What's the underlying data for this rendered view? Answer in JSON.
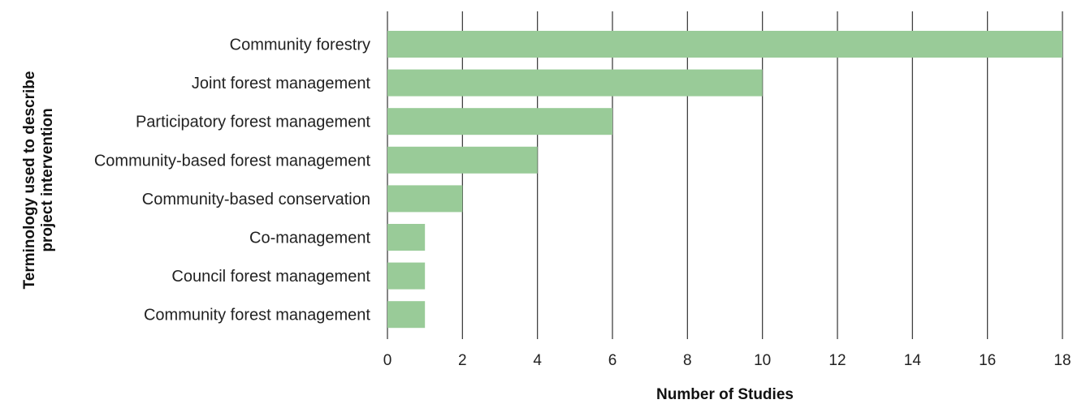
{
  "chart_data": {
    "type": "bar",
    "orientation": "horizontal",
    "categories": [
      "Community forestry",
      "Joint forest management",
      "Participatory forest management",
      "Community-based forest management",
      "Community-based conservation",
      "Co-management",
      "Council forest management",
      "Community forest management"
    ],
    "values": [
      18,
      10,
      6,
      4,
      2,
      1,
      1,
      1
    ],
    "xlabel": "Number of Studies",
    "ylabel_lines": [
      "Terminology used to describe",
      "project intervention"
    ],
    "xlim": [
      0,
      18
    ],
    "xticks": [
      0,
      2,
      4,
      6,
      8,
      10,
      12,
      14,
      16,
      18
    ],
    "grid": "vertical",
    "bar_color": "#99cb98",
    "grid_color": "#333333"
  }
}
